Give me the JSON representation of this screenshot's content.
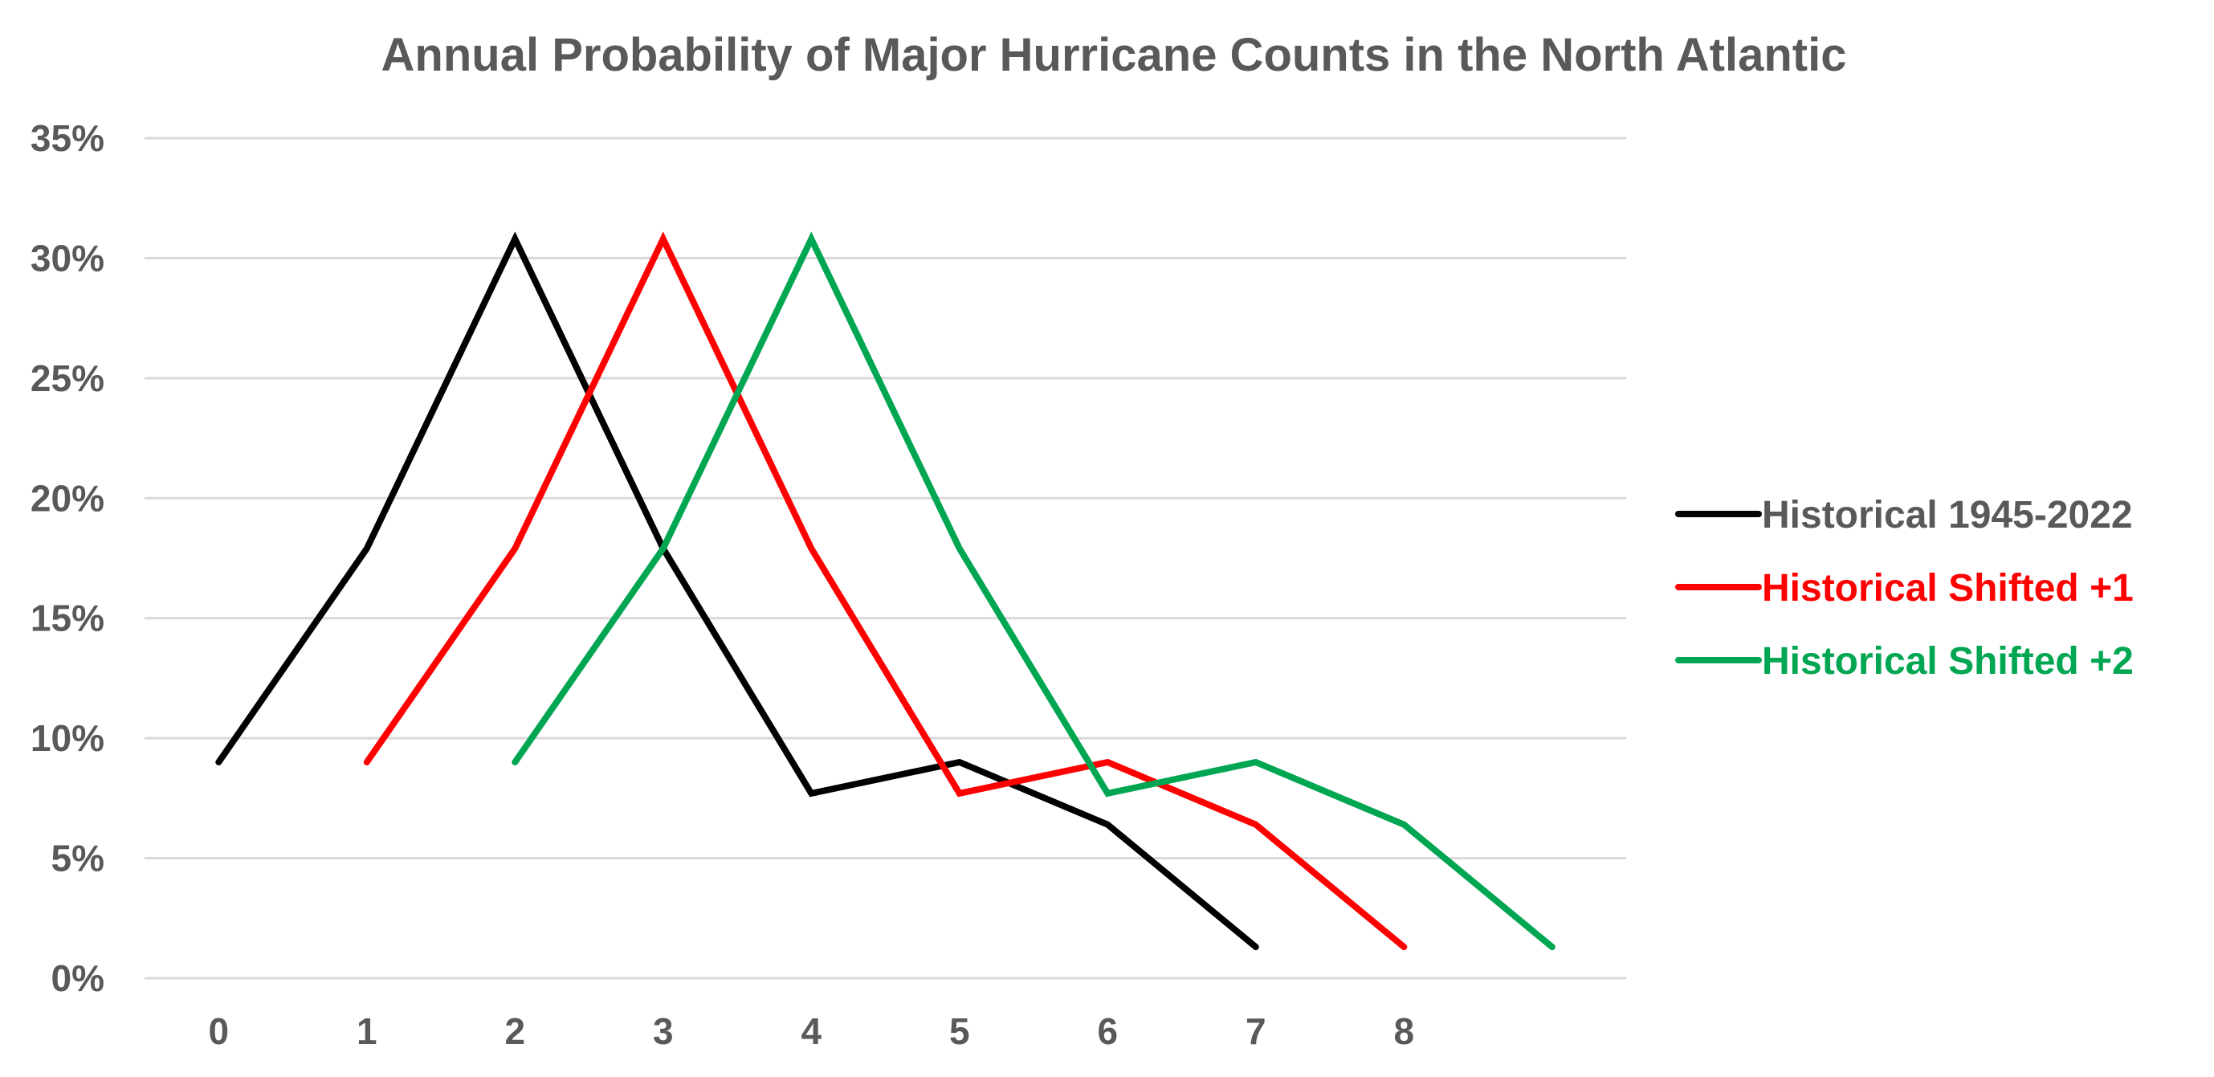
{
  "chart_data": {
    "type": "line",
    "title": "Annual Probability of Major Hurricane Counts in the North Atlantic",
    "xlabel": "",
    "ylabel": "",
    "categories": [
      "0",
      "1",
      "2",
      "3",
      "4",
      "5",
      "6",
      "7",
      "8",
      ""
    ],
    "ylim": [
      0,
      35
    ],
    "yticks": [
      0,
      5,
      10,
      15,
      20,
      25,
      30,
      35
    ],
    "ytick_labels": [
      "0%",
      "5%",
      "10%",
      "15%",
      "20%",
      "25%",
      "30%",
      "35%"
    ],
    "grid": true,
    "legend_position": "right",
    "series": [
      {
        "name": "Historical 1945-2022",
        "color": "#000000",
        "values": [
          9.0,
          17.9,
          30.8,
          17.9,
          7.7,
          9.0,
          6.4,
          1.3,
          null,
          null
        ]
      },
      {
        "name": "Historical Shifted +1",
        "color": "#ff0000",
        "values": [
          null,
          9.0,
          17.9,
          30.8,
          17.9,
          7.7,
          9.0,
          6.4,
          1.3,
          null
        ]
      },
      {
        "name": "Historical Shifted +2",
        "color": "#00a651",
        "values": [
          null,
          null,
          9.0,
          17.9,
          30.8,
          17.9,
          7.7,
          9.0,
          6.4,
          1.3
        ]
      }
    ],
    "colors": {
      "text": "#595959",
      "gridline": "#d9d9d9"
    }
  }
}
